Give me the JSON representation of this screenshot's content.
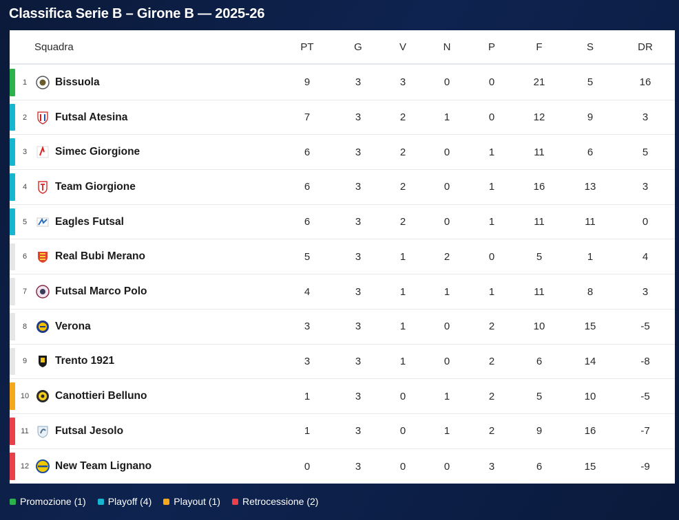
{
  "title": "Classifica Serie B – Girone B — 2025-26",
  "colors": {
    "promozione": "#2bb24c",
    "playoff": "#17b6d0",
    "playout": "#f5a81c",
    "retrocessione": "#e8414a",
    "none": "#e6e6e6"
  },
  "headers": {
    "team": "Squadra",
    "pt": "PT",
    "g": "G",
    "v": "V",
    "n": "N",
    "p": "P",
    "f": "F",
    "s": "S",
    "dr": "DR"
  },
  "rows": [
    {
      "pos": "1",
      "team": "Bissuola",
      "zone": "promozione",
      "icon": "bissuola-logo-icon",
      "pt": "9",
      "g": "3",
      "v": "3",
      "n": "0",
      "p": "0",
      "f": "21",
      "s": "5",
      "dr": "16"
    },
    {
      "pos": "2",
      "team": "Futsal Atesina",
      "zone": "playoff",
      "icon": "futsal-atesina-logo-icon",
      "pt": "7",
      "g": "3",
      "v": "2",
      "n": "1",
      "p": "0",
      "f": "12",
      "s": "9",
      "dr": "3"
    },
    {
      "pos": "3",
      "team": "Simec Giorgione",
      "zone": "playoff",
      "icon": "simec-giorgione-logo-icon",
      "pt": "6",
      "g": "3",
      "v": "2",
      "n": "0",
      "p": "1",
      "f": "11",
      "s": "6",
      "dr": "5"
    },
    {
      "pos": "4",
      "team": "Team Giorgione",
      "zone": "playoff",
      "icon": "team-giorgione-logo-icon",
      "pt": "6",
      "g": "3",
      "v": "2",
      "n": "0",
      "p": "1",
      "f": "16",
      "s": "13",
      "dr": "3"
    },
    {
      "pos": "5",
      "team": "Eagles Futsal",
      "zone": "playoff",
      "icon": "eagles-futsal-logo-icon",
      "pt": "6",
      "g": "3",
      "v": "2",
      "n": "0",
      "p": "1",
      "f": "11",
      "s": "11",
      "dr": "0"
    },
    {
      "pos": "6",
      "team": "Real Bubi Merano",
      "zone": "none",
      "icon": "real-bubi-merano-logo-icon",
      "pt": "5",
      "g": "3",
      "v": "1",
      "n": "2",
      "p": "0",
      "f": "5",
      "s": "1",
      "dr": "4"
    },
    {
      "pos": "7",
      "team": "Futsal Marco Polo",
      "zone": "none",
      "icon": "futsal-marco-polo-logo-icon",
      "pt": "4",
      "g": "3",
      "v": "1",
      "n": "1",
      "p": "1",
      "f": "11",
      "s": "8",
      "dr": "3"
    },
    {
      "pos": "8",
      "team": "Verona",
      "zone": "none",
      "icon": "verona-logo-icon",
      "pt": "3",
      "g": "3",
      "v": "1",
      "n": "0",
      "p": "2",
      "f": "10",
      "s": "15",
      "dr": "-5"
    },
    {
      "pos": "9",
      "team": "Trento 1921",
      "zone": "none",
      "icon": "trento-1921-logo-icon",
      "pt": "3",
      "g": "3",
      "v": "1",
      "n": "0",
      "p": "2",
      "f": "6",
      "s": "14",
      "dr": "-8"
    },
    {
      "pos": "10",
      "team": "Canottieri Belluno",
      "zone": "playout",
      "icon": "canottieri-belluno-logo-icon",
      "pt": "1",
      "g": "3",
      "v": "0",
      "n": "1",
      "p": "2",
      "f": "5",
      "s": "10",
      "dr": "-5"
    },
    {
      "pos": "11",
      "team": "Futsal Jesolo",
      "zone": "retrocessione",
      "icon": "futsal-jesolo-logo-icon",
      "pt": "1",
      "g": "3",
      "v": "0",
      "n": "1",
      "p": "2",
      "f": "9",
      "s": "16",
      "dr": "-7"
    },
    {
      "pos": "12",
      "team": "New Team Lignano",
      "zone": "retrocessione",
      "icon": "new-team-lignano-logo-icon",
      "pt": "0",
      "g": "3",
      "v": "0",
      "n": "0",
      "p": "3",
      "f": "6",
      "s": "15",
      "dr": "-9"
    }
  ],
  "legend": [
    {
      "zone": "promozione",
      "label": "Promozione (1)"
    },
    {
      "zone": "playoff",
      "label": "Playoff (4)"
    },
    {
      "zone": "playout",
      "label": "Playout (1)"
    },
    {
      "zone": "retrocessione",
      "label": "Retrocessione (2)"
    }
  ]
}
